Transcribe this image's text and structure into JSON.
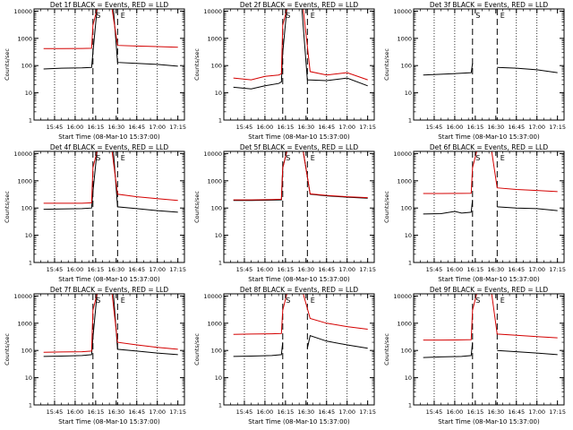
{
  "chart_data": [
    {
      "type": "line",
      "title": "Det 1f BLACK = Events, RED = LLD",
      "xlabel": "Start Time (08-Mar-10 15:37:00)",
      "ylabel": "Counts/sec",
      "y_scale": "log",
      "ylim": [
        1,
        12000
      ],
      "xlim": [
        15.5,
        17.33
      ],
      "x_ticks": [
        "15:45",
        "16:00",
        "16:15",
        "16:30",
        "16:45",
        "17:00",
        "17:15"
      ],
      "y_ticks": [
        "1",
        "10",
        "100",
        "1000",
        "10000"
      ],
      "dotted_vlines": [
        "15:45",
        "16:00",
        "16:45",
        "17:00"
      ],
      "dashed_vlines": [
        "16:13",
        "16:31"
      ],
      "markers": [
        "S",
        "E"
      ],
      "series": [
        {
          "color": "#000000",
          "x": [
            "15:37",
            "15:50",
            "16:05",
            "16:12",
            "16:13",
            "16:16",
            "16:22",
            "16:28",
            "16:31",
            "16:45",
            "17:00",
            "17:15"
          ],
          "values": [
            75,
            80,
            82,
            85,
            300,
            12000,
            12000,
            12000,
            130,
            120,
            110,
            95
          ]
        },
        {
          "color": "#d40000",
          "x": [
            "15:37",
            "15:50",
            "16:05",
            "16:12",
            "16:13",
            "16:16",
            "16:22",
            "16:27",
            "16:31",
            "16:45",
            "17:00",
            "17:15"
          ],
          "values": [
            420,
            420,
            425,
            430,
            3000,
            12000,
            12000,
            12000,
            550,
            520,
            500,
            470
          ]
        }
      ]
    },
    {
      "type": "line",
      "title": "Det 2f BLACK = Events, RED = LLD",
      "xlabel": "Start Time (08-Mar-10 15:37:00)",
      "ylabel": "Counts/sec",
      "y_scale": "log",
      "ylim": [
        1,
        12000
      ],
      "xlim": [
        15.5,
        17.33
      ],
      "x_ticks": [
        "15:45",
        "16:00",
        "16:15",
        "16:30",
        "16:45",
        "17:00",
        "17:15"
      ],
      "y_ticks": [
        "1",
        "10",
        "100",
        "1000",
        "10000"
      ],
      "dotted_vlines": [
        "15:45",
        "16:00",
        "16:45",
        "17:00"
      ],
      "dashed_vlines": [
        "16:13",
        "16:31"
      ],
      "markers": [
        "S",
        "E"
      ],
      "series": [
        {
          "color": "#000000",
          "x": [
            "15:37",
            "15:50",
            "16:00",
            "16:10",
            "16:12",
            "16:13",
            "16:16",
            "16:22",
            "16:27",
            "16:31",
            "16:45",
            "17:00",
            "17:15"
          ],
          "values": [
            16,
            14,
            18,
            22,
            25,
            300,
            12000,
            12000,
            12000,
            30,
            28,
            35,
            18
          ]
        },
        {
          "color": "#d40000",
          "x": [
            "15:37",
            "15:50",
            "16:00",
            "16:10",
            "16:12",
            "16:13",
            "16:16",
            "16:22",
            "16:28",
            "16:33",
            "16:45",
            "17:00",
            "17:15"
          ],
          "values": [
            35,
            30,
            40,
            45,
            50,
            3000,
            12000,
            12000,
            12000,
            60,
            45,
            55,
            30
          ]
        }
      ]
    },
    {
      "type": "line",
      "title": "Det 3f BLACK = Events, RED = LLD",
      "xlabel": "Start Time (08-Mar-10 15:37:00)",
      "ylabel": "Counts/sec",
      "y_scale": "log",
      "ylim": [
        1,
        12000
      ],
      "xlim": [
        15.5,
        17.33
      ],
      "x_ticks": [
        "15:45",
        "16:00",
        "16:15",
        "16:30",
        "16:45",
        "17:00",
        "17:15"
      ],
      "y_ticks": [
        "1",
        "10",
        "100",
        "1000",
        "10000"
      ],
      "dotted_vlines": [
        "15:45",
        "16:00",
        "16:45",
        "17:00"
      ],
      "dashed_vlines": [
        "16:13",
        "16:31"
      ],
      "markers": [
        "S",
        "E"
      ],
      "series": [
        {
          "color": "#000000",
          "x": [
            "15:37",
            "15:50",
            "16:05",
            "16:12",
            "16:13"
          ],
          "values": [
            45,
            48,
            52,
            55,
            120
          ]
        },
        {
          "color": "#000000",
          "x": [
            "16:31",
            "16:45",
            "17:00",
            "17:15"
          ],
          "values": [
            85,
            80,
            70,
            55
          ]
        }
      ]
    },
    {
      "type": "line",
      "title": "Det 4f BLACK = Events, RED = LLD",
      "xlabel": "Start Time (08-Mar-10 15:37:00)",
      "ylabel": "Counts/sec",
      "y_scale": "log",
      "ylim": [
        1,
        12000
      ],
      "xlim": [
        15.5,
        17.33
      ],
      "x_ticks": [
        "15:45",
        "16:00",
        "16:15",
        "16:30",
        "16:45",
        "17:00",
        "17:15"
      ],
      "y_ticks": [
        "1",
        "10",
        "100",
        "1000",
        "10000"
      ],
      "dotted_vlines": [
        "15:45",
        "16:00",
        "16:45",
        "17:00"
      ],
      "dashed_vlines": [
        "16:13",
        "16:31"
      ],
      "markers": [
        "S",
        "E"
      ],
      "series": [
        {
          "color": "#000000",
          "x": [
            "15:37",
            "15:50",
            "16:05",
            "16:12",
            "16:13",
            "16:16",
            "16:22",
            "16:28",
            "16:31",
            "16:45",
            "17:00",
            "17:15"
          ],
          "values": [
            90,
            92,
            95,
            100,
            400,
            12000,
            12000,
            12000,
            110,
            95,
            80,
            70
          ]
        },
        {
          "color": "#d40000",
          "x": [
            "15:37",
            "15:50",
            "16:05",
            "16:12",
            "16:13",
            "16:16",
            "16:22",
            "16:27",
            "16:31",
            "16:45",
            "17:00",
            "17:15"
          ],
          "values": [
            150,
            150,
            150,
            155,
            3000,
            12000,
            12000,
            12000,
            320,
            260,
            220,
            190
          ]
        }
      ]
    },
    {
      "type": "line",
      "title": "Det 5f BLACK = Events, RED = LLD",
      "xlabel": "Start Time (08-Mar-10 15:37:00)",
      "ylabel": "Counts/sec",
      "y_scale": "log",
      "ylim": [
        1,
        12000
      ],
      "xlim": [
        15.5,
        17.33
      ],
      "x_ticks": [
        "15:45",
        "16:00",
        "16:15",
        "16:30",
        "16:45",
        "17:00",
        "17:15"
      ],
      "y_ticks": [
        "1",
        "10",
        "100",
        "1000",
        "10000"
      ],
      "dotted_vlines": [
        "15:45",
        "16:00",
        "16:45",
        "17:00"
      ],
      "dashed_vlines": [
        "16:13",
        "16:31"
      ],
      "markers": [
        "S",
        "E"
      ],
      "series": [
        {
          "color": "#000000",
          "x": [
            "15:37",
            "15:50",
            "16:05",
            "16:12",
            "16:13",
            "16:16",
            "16:22",
            "16:28",
            "16:33",
            "16:45",
            "17:00",
            "17:15"
          ],
          "values": [
            190,
            190,
            195,
            200,
            3000,
            12000,
            12000,
            12000,
            320,
            280,
            250,
            230
          ]
        },
        {
          "color": "#d40000",
          "x": [
            "15:37",
            "15:50",
            "16:05",
            "16:12",
            "16:13",
            "16:16",
            "16:22",
            "16:28",
            "16:33",
            "16:45",
            "17:00",
            "17:15"
          ],
          "values": [
            200,
            200,
            205,
            210,
            3000,
            12000,
            12000,
            12000,
            330,
            290,
            260,
            240
          ]
        }
      ]
    },
    {
      "type": "line",
      "title": "Det 6f BLACK = Events, RED = LLD",
      "xlabel": "Start Time (08-Mar-10 15:37:00)",
      "ylabel": "Counts/sec",
      "y_scale": "log",
      "ylim": [
        1,
        12000
      ],
      "xlim": [
        15.5,
        17.33
      ],
      "x_ticks": [
        "15:45",
        "16:00",
        "16:15",
        "16:30",
        "16:45",
        "17:00",
        "17:15"
      ],
      "y_ticks": [
        "1",
        "10",
        "100",
        "1000",
        "10000"
      ],
      "dotted_vlines": [
        "15:45",
        "16:00",
        "16:45",
        "17:00"
      ],
      "dashed_vlines": [
        "16:13",
        "16:31"
      ],
      "markers": [
        "S",
        "E"
      ],
      "series": [
        {
          "color": "#000000",
          "x": [
            "15:37",
            "15:50",
            "16:00",
            "16:05",
            "16:12",
            "16:13"
          ],
          "values": [
            60,
            62,
            75,
            65,
            70,
            200
          ]
        },
        {
          "color": "#000000",
          "x": [
            "16:31",
            "16:45",
            "17:00",
            "17:15"
          ],
          "values": [
            110,
            100,
            95,
            80
          ]
        },
        {
          "color": "#d40000",
          "x": [
            "15:37",
            "15:50",
            "16:05",
            "16:12",
            "16:13",
            "16:16",
            "16:22",
            "16:27",
            "16:31",
            "16:45",
            "17:00",
            "17:15"
          ],
          "values": [
            340,
            340,
            345,
            350,
            3000,
            12000,
            12000,
            12000,
            550,
            480,
            440,
            400
          ]
        }
      ]
    },
    {
      "type": "line",
      "title": "Det 7f BLACK = Events, RED = LLD",
      "xlabel": "Start Time (08-Mar-10 15:37:00)",
      "ylabel": "Counts/sec",
      "y_scale": "log",
      "ylim": [
        1,
        12000
      ],
      "xlim": [
        15.5,
        17.33
      ],
      "x_ticks": [
        "15:45",
        "16:00",
        "16:15",
        "16:30",
        "16:45",
        "17:00",
        "17:15"
      ],
      "y_ticks": [
        "1",
        "10",
        "100",
        "1000",
        "10000"
      ],
      "dotted_vlines": [
        "15:45",
        "16:00",
        "16:45",
        "17:00"
      ],
      "dashed_vlines": [
        "16:13",
        "16:31"
      ],
      "markers": [
        "S",
        "E"
      ],
      "series": [
        {
          "color": "#000000",
          "x": [
            "15:37",
            "15:50",
            "16:05",
            "16:12",
            "16:13",
            "16:16",
            "16:22",
            "16:28",
            "16:31",
            "16:45",
            "17:00",
            "17:15"
          ],
          "values": [
            60,
            62,
            65,
            70,
            300,
            12000,
            12000,
            12000,
            110,
            95,
            80,
            70
          ]
        },
        {
          "color": "#d40000",
          "x": [
            "15:37",
            "15:50",
            "16:05",
            "16:12",
            "16:13",
            "16:16",
            "16:22",
            "16:27",
            "16:31",
            "16:45",
            "17:00",
            "17:15"
          ],
          "values": [
            85,
            88,
            90,
            95,
            3000,
            12000,
            12000,
            12000,
            200,
            160,
            130,
            110
          ]
        }
      ]
    },
    {
      "type": "line",
      "title": "Det 8f BLACK = Events, RED = LLD",
      "xlabel": "Start Time (08-Mar-10 15:37:00)",
      "ylabel": "Counts/sec",
      "y_scale": "log",
      "ylim": [
        1,
        12000
      ],
      "xlim": [
        15.5,
        17.33
      ],
      "x_ticks": [
        "15:45",
        "16:00",
        "16:15",
        "16:30",
        "16:45",
        "17:00",
        "17:15"
      ],
      "y_ticks": [
        "1",
        "10",
        "100",
        "1000",
        "10000"
      ],
      "dotted_vlines": [
        "15:45",
        "16:00",
        "16:45",
        "17:00"
      ],
      "dashed_vlines": [
        "16:13",
        "16:31"
      ],
      "markers": [
        "S",
        "E"
      ],
      "series": [
        {
          "color": "#000000",
          "x": [
            "15:37",
            "15:50",
            "16:05",
            "16:12",
            "16:13"
          ],
          "values": [
            60,
            62,
            65,
            70,
            200
          ]
        },
        {
          "color": "#000000",
          "x": [
            "16:31",
            "16:33",
            "16:45",
            "17:00",
            "17:15"
          ],
          "values": [
            120,
            350,
            220,
            160,
            120
          ]
        },
        {
          "color": "#d40000",
          "x": [
            "15:37",
            "15:50",
            "16:05",
            "16:12",
            "16:13",
            "16:16",
            "16:22",
            "16:28",
            "16:33",
            "16:45",
            "17:00",
            "17:15"
          ],
          "values": [
            390,
            400,
            410,
            420,
            3000,
            12000,
            12000,
            12000,
            1500,
            1000,
            750,
            600
          ]
        }
      ]
    },
    {
      "type": "line",
      "title": "Det 9f BLACK = Events, RED = LLD",
      "xlabel": "Start Time (08-Mar-10 15:37:00)",
      "ylabel": "Counts/sec",
      "y_scale": "log",
      "ylim": [
        1,
        12000
      ],
      "xlim": [
        15.5,
        17.33
      ],
      "x_ticks": [
        "15:45",
        "16:00",
        "16:15",
        "16:30",
        "16:45",
        "17:00",
        "17:15"
      ],
      "y_ticks": [
        "1",
        "10",
        "100",
        "1000",
        "10000"
      ],
      "dotted_vlines": [
        "15:45",
        "16:00",
        "16:45",
        "17:00"
      ],
      "dashed_vlines": [
        "16:13",
        "16:31"
      ],
      "markers": [
        "S",
        "E"
      ],
      "series": [
        {
          "color": "#000000",
          "x": [
            "15:37",
            "15:50",
            "16:05",
            "16:12",
            "16:13"
          ],
          "values": [
            55,
            58,
            60,
            65,
            200
          ]
        },
        {
          "color": "#000000",
          "x": [
            "16:31",
            "16:45",
            "17:00",
            "17:15"
          ],
          "values": [
            100,
            90,
            80,
            70
          ]
        },
        {
          "color": "#d40000",
          "x": [
            "15:37",
            "15:50",
            "16:05",
            "16:12",
            "16:13",
            "16:16",
            "16:22",
            "16:27",
            "16:31",
            "16:45",
            "17:00",
            "17:15"
          ],
          "values": [
            240,
            240,
            245,
            250,
            3000,
            12000,
            12000,
            12000,
            400,
            360,
            320,
            290
          ]
        }
      ]
    }
  ]
}
